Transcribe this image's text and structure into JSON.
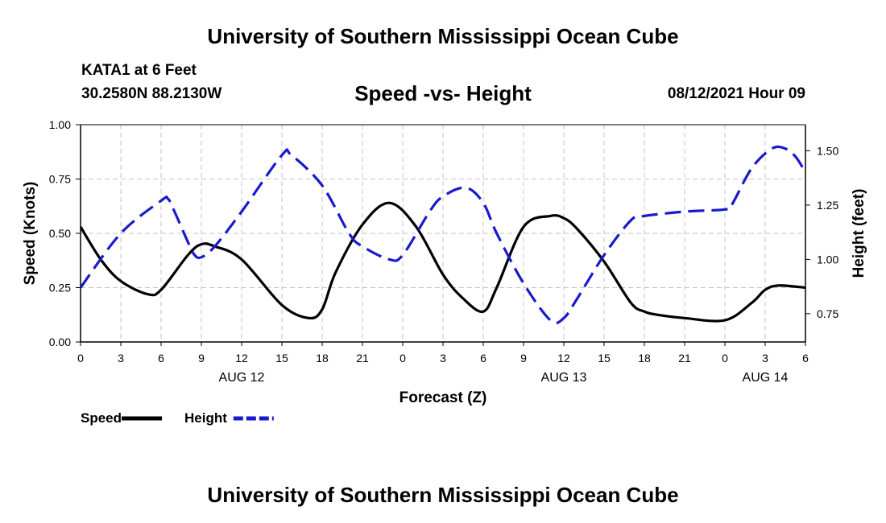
{
  "header": {
    "title": "University of Southern Mississippi Ocean Cube",
    "station": "KATA1 at 6 Feet",
    "coords": "30.2580N  88.2130W",
    "subtitle": "Speed -vs- Height",
    "datetime": "08/12/2021 Hour 09"
  },
  "footer": {
    "title": "University of Southern Mississippi Ocean Cube"
  },
  "chart_data": {
    "type": "line",
    "xlabel": "Forecast (Z)",
    "ylabel_left": "Speed (Knots)",
    "ylabel_right": "Height (feet)",
    "x_range": [
      0,
      54
    ],
    "ylim_left": [
      0,
      1
    ],
    "ylim_right": [
      0.62,
      1.62
    ],
    "x_tick_values": [
      0,
      3,
      6,
      9,
      12,
      15,
      18,
      21,
      24,
      27,
      30,
      33,
      36,
      39,
      42,
      45,
      48,
      51,
      54
    ],
    "x_tick_labels": [
      "0",
      "3",
      "6",
      "9",
      "12",
      "15",
      "18",
      "21",
      "0",
      "3",
      "6",
      "9",
      "12",
      "15",
      "18",
      "21",
      "0",
      "3",
      "6"
    ],
    "date_labels": [
      {
        "x": 12,
        "label": "AUG 12"
      },
      {
        "x": 36,
        "label": "AUG 13"
      },
      {
        "x": 51,
        "label": "AUG 14"
      }
    ],
    "left_ticks": [
      {
        "value": 0,
        "label": "0.00"
      },
      {
        "value": 0.25,
        "label": "0.25"
      },
      {
        "value": 0.5,
        "label": "0.50"
      },
      {
        "value": 0.75,
        "label": "0.75"
      },
      {
        "value": 1.0,
        "label": "1.00"
      }
    ],
    "right_ticks": [
      {
        "value": 0.75,
        "label": "0.75"
      },
      {
        "value": 1.0,
        "label": "1.00"
      },
      {
        "value": 1.25,
        "label": "1.25"
      },
      {
        "value": 1.5,
        "label": "1.50"
      }
    ],
    "grid": true,
    "legend_position": "bottom-left",
    "series": [
      {
        "name": "Speed",
        "axis": "left",
        "color": "#000000",
        "style": "solid",
        "x": [
          0,
          1.5,
          3,
          5,
          6,
          8,
          9,
          10,
          12,
          15,
          17,
          18,
          19,
          21,
          23,
          25,
          27,
          28.5,
          30,
          31,
          33,
          35,
          36,
          37,
          39,
          41,
          42,
          43,
          45,
          48,
          50,
          51,
          52,
          54
        ],
        "values": [
          0.53,
          0.38,
          0.28,
          0.22,
          0.24,
          0.4,
          0.45,
          0.44,
          0.38,
          0.17,
          0.11,
          0.15,
          0.32,
          0.54,
          0.64,
          0.53,
          0.31,
          0.2,
          0.14,
          0.25,
          0.53,
          0.58,
          0.57,
          0.52,
          0.37,
          0.18,
          0.14,
          0.125,
          0.11,
          0.1,
          0.18,
          0.24,
          0.26,
          0.25
        ]
      },
      {
        "name": "Height",
        "axis": "right",
        "color": "#1a1acc",
        "style": "dashed",
        "x": [
          0,
          3,
          6,
          6.5,
          7,
          8,
          8.5,
          9,
          10,
          12,
          15,
          15.7,
          18,
          20,
          21,
          23,
          24,
          26,
          27,
          28.7,
          30,
          31,
          33,
          35,
          36,
          37,
          39,
          41,
          42,
          45,
          48,
          48.5,
          50,
          51.5,
          52.5,
          53.3,
          54
        ],
        "values": [
          0.87,
          1.12,
          1.27,
          1.28,
          1.22,
          1.08,
          1.02,
          1.01,
          1.06,
          1.22,
          1.48,
          1.48,
          1.34,
          1.12,
          1.06,
          1.0,
          1.02,
          1.22,
          1.29,
          1.33,
          1.26,
          1.12,
          0.89,
          0.72,
          0.73,
          0.82,
          1.02,
          1.18,
          1.2,
          1.22,
          1.23,
          1.25,
          1.42,
          1.51,
          1.51,
          1.47,
          1.4
        ]
      }
    ]
  }
}
